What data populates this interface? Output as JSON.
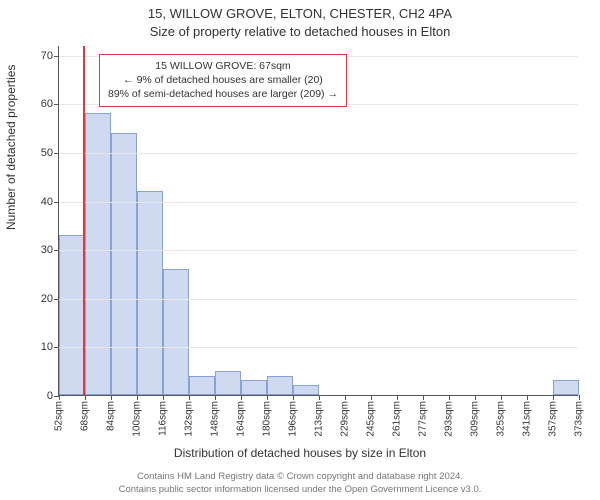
{
  "titles": {
    "line1": "15, WILLOW GROVE, ELTON, CHESTER, CH2 4PA",
    "line2": "Size of property relative to detached houses in Elton"
  },
  "axes": {
    "ylabel": "Number of detached properties",
    "xlabel": "Distribution of detached houses by size in Elton",
    "ymax": 72,
    "yticks": [
      0,
      10,
      20,
      30,
      40,
      50,
      60,
      70
    ],
    "xtick_labels": [
      "52sqm",
      "68sqm",
      "84sqm",
      "100sqm",
      "116sqm",
      "132sqm",
      "148sqm",
      "164sqm",
      "180sqm",
      "196sqm",
      "213sqm",
      "229sqm",
      "245sqm",
      "261sqm",
      "277sqm",
      "293sqm",
      "309sqm",
      "325sqm",
      "341sqm",
      "357sqm",
      "373sqm"
    ]
  },
  "chart": {
    "type": "histogram",
    "bar_fill": "#cfd9ef",
    "bar_stroke": "#8aa1d6",
    "grid_color": "#e8e8ec",
    "background": "#ffffff",
    "values": [
      33,
      58,
      54,
      42,
      26,
      4,
      5,
      3,
      4,
      2,
      0,
      0,
      0,
      0,
      0,
      0,
      0,
      0,
      0,
      3
    ]
  },
  "reference": {
    "color": "#dd3c3c",
    "bin_index": 0.94
  },
  "annotation": {
    "line1": "15 WILLOW GROVE: 67sqm",
    "line2": "← 9% of detached houses are smaller (20)",
    "line3": "89% of semi-detached houses are larger (209) →"
  },
  "footer": {
    "line1": "Contains HM Land Registry data © Crown copyright and database right 2024.",
    "line2": "Contains public sector information licensed under the Open Government Licence v3.0."
  }
}
